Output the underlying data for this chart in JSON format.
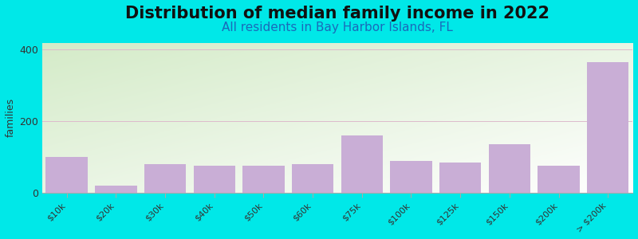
{
  "title": "Distribution of median family income in 2022",
  "subtitle": "All residents in Bay Harbor Islands, FL",
  "categories": [
    "$10k",
    "$20k",
    "$30k",
    "$40k",
    "$50k",
    "$60k",
    "$75k",
    "$100k",
    "$125k",
    "$150k",
    "$200k",
    "> $200k"
  ],
  "values": [
    100,
    20,
    80,
    75,
    75,
    80,
    160,
    90,
    85,
    135,
    75,
    365
  ],
  "bar_color": "#c9aed6",
  "bar_edge_color": "#c9aed6",
  "ylabel": "families",
  "ylim": [
    0,
    420
  ],
  "yticks": [
    0,
    200,
    400
  ],
  "bg_outer": "#00e8e8",
  "bg_plot_topleft": "#d4ebc8",
  "bg_plot_white": "#ffffff",
  "title_fontsize": 15,
  "subtitle_fontsize": 11,
  "subtitle_color": "#1a6aba",
  "axis_color": "#aaaaaa",
  "grid_color": "#ddbbcc",
  "tick_label_fontsize": 8
}
